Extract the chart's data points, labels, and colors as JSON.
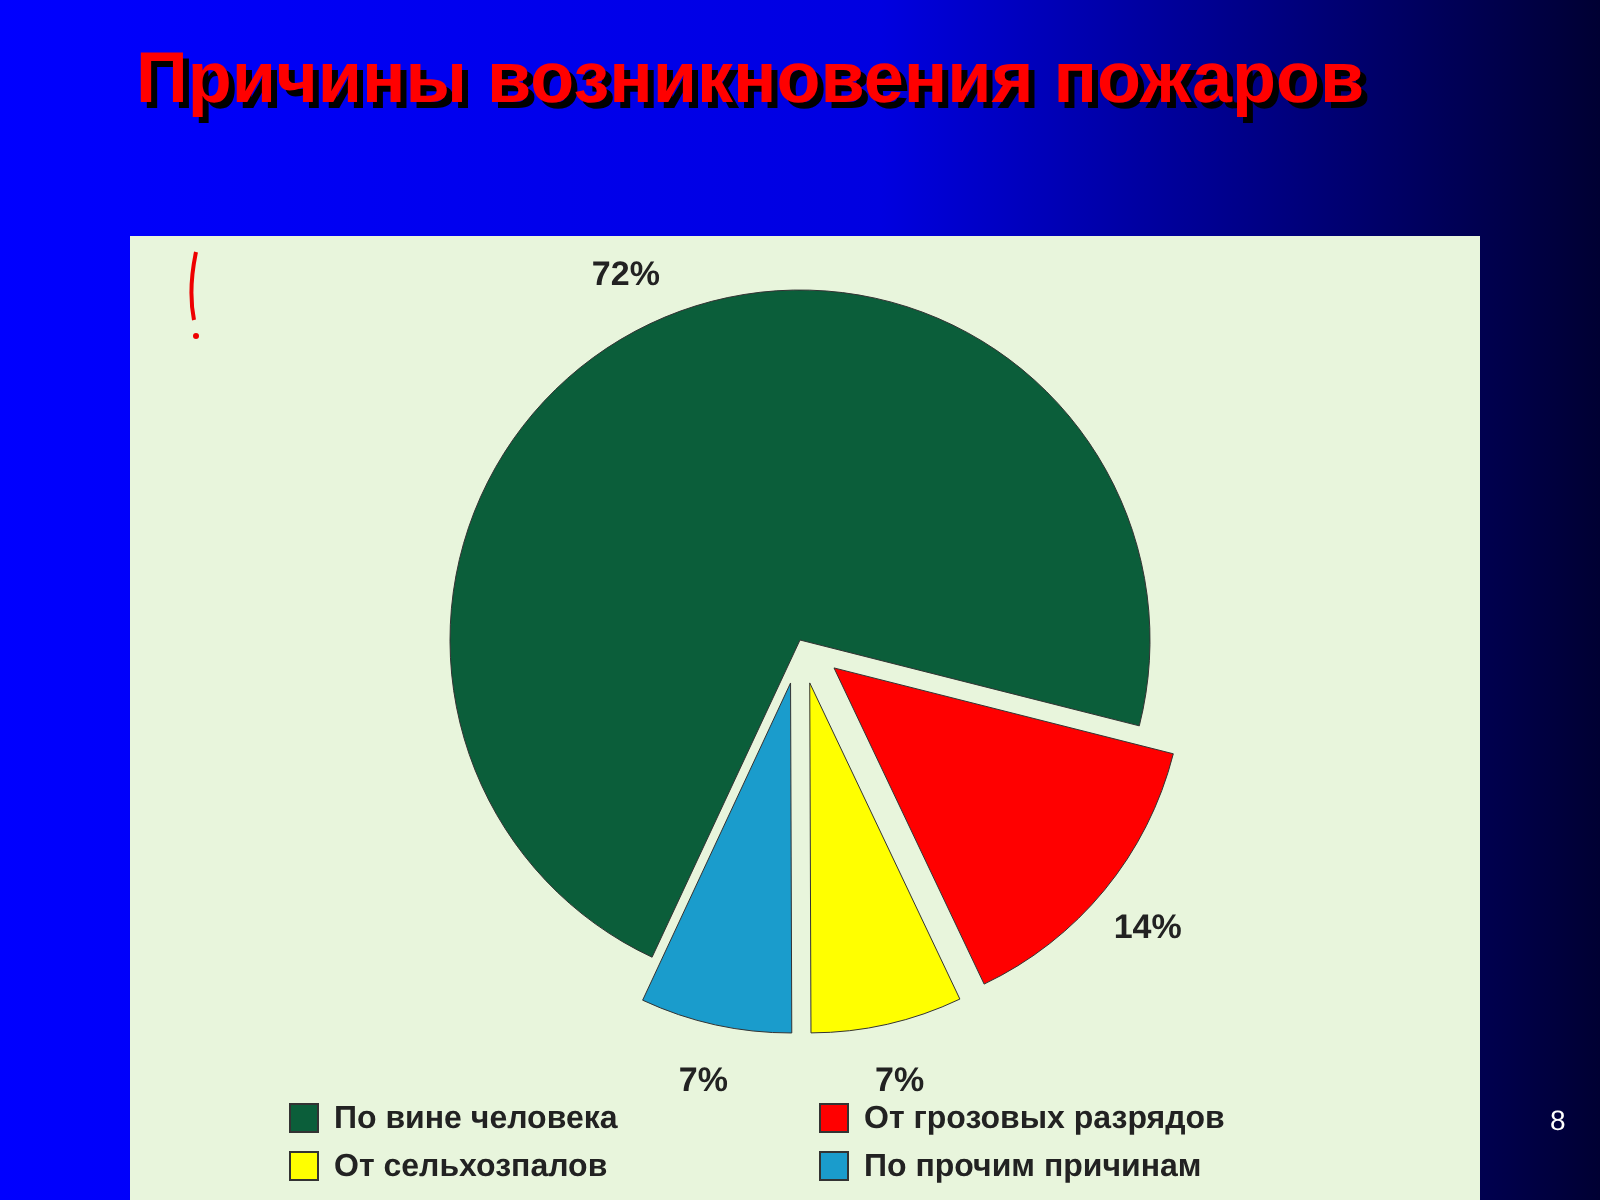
{
  "chart_data": {
    "type": "pie",
    "title": "Причины возникновения пожаров",
    "categories": [
      "По вине человека",
      "От грозовых разрядов",
      "От сельхозпалов",
      "По прочим причинам"
    ],
    "values": [
      72,
      14,
      7,
      7
    ],
    "colors": [
      "#0b5e3a",
      "#ff0000",
      "#ffff00",
      "#1a9ccc"
    ],
    "value_labels": [
      "72%",
      "14%",
      "7%",
      "7%"
    ],
    "legend": "bottom",
    "annotations": [
      "8"
    ]
  }
}
